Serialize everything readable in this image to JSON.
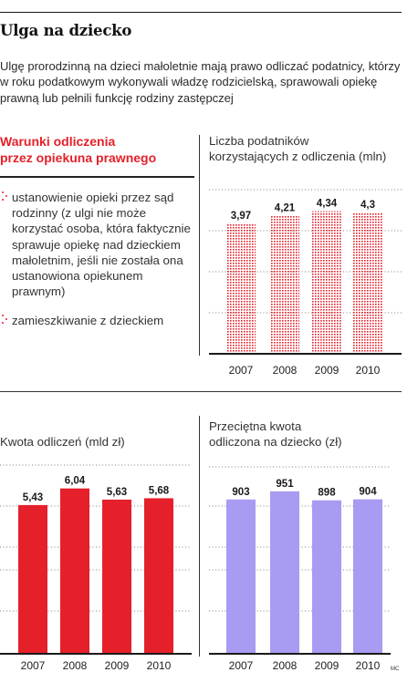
{
  "title": "Ulga na dziecko",
  "intro": "Ulgę prorodzinną na dzieci małoletnie mają prawo odliczać podatnicy, którzy w roku podatkowym wykonywali władzę rodzicielską, sprawowali opiekę prawną lub pełnili funkcję rodziny zastępczej",
  "conditions": {
    "heading_line1": "Warunki odliczenia",
    "heading_line2": "przez opiekuna prawnego",
    "items": [
      "ustanowienie opieki przez sąd rodzinny (z ulgi nie może korzystać osoba, która faktycznie sprawuje opiekę nad dzieckiem małoletnim, jeśli nie została ona ustanowiona opiekunem prawnym)",
      "zamieszkiwanie z dzieckiem"
    ],
    "marker_color": "#e5202a"
  },
  "credit": "MC",
  "chart_data": [
    {
      "type": "bar",
      "title": "Liczba podatników korzystających z odliczenia (mln)",
      "title_lines": [
        "Liczba podatników",
        "korzystających z odliczenia (mln)"
      ],
      "categories": [
        "2007",
        "2008",
        "2009",
        "2010"
      ],
      "values": [
        3.97,
        4.21,
        4.34,
        4.3
      ],
      "value_labels": [
        "3,97",
        "4,21",
        "4,34",
        "4,3"
      ],
      "ylim": [
        0,
        5
      ],
      "grid": true,
      "color": "#e5202a",
      "style": "dotted"
    },
    {
      "type": "bar",
      "title": "Kwota odliczeń (mld zł)",
      "title_lines": [
        "Kwota odliczeń (mld zł)"
      ],
      "categories": [
        "2007",
        "2008",
        "2009",
        "2010"
      ],
      "values": [
        5.43,
        6.04,
        5.63,
        5.68
      ],
      "value_labels": [
        "5,43",
        "6,04",
        "5,63",
        "5,68"
      ],
      "ylim": [
        0,
        6.9
      ],
      "grid": true,
      "color": "#e5202a",
      "style": "solid"
    },
    {
      "type": "bar",
      "title": "Przeciętna kwota odliczona na dziecko (zł)",
      "title_lines": [
        "Przeciętna kwota",
        "odliczona na dziecko (zł)"
      ],
      "categories": [
        "2007",
        "2008",
        "2009",
        "2010"
      ],
      "values": [
        903,
        951,
        898,
        904
      ],
      "value_labels": [
        "903",
        "951",
        "898",
        "904"
      ],
      "ylim": [
        0,
        1095
      ],
      "grid": true,
      "color": "#a79cf2",
      "style": "solid"
    }
  ]
}
